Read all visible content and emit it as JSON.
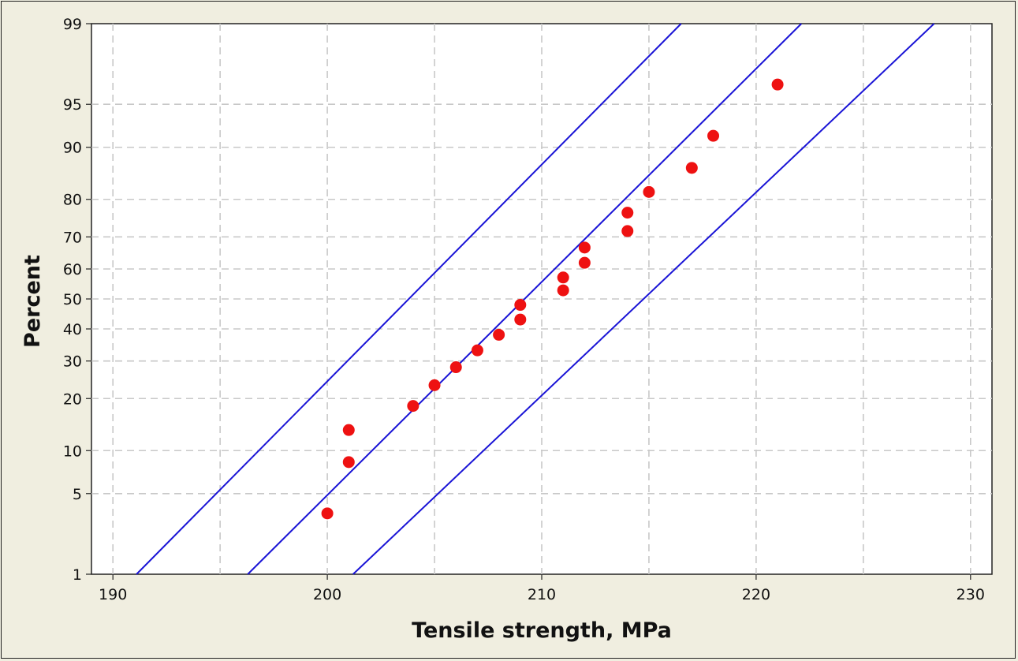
{
  "chart_data": {
    "type": "scatter",
    "title": "",
    "xlabel": "Tensile strength, MPa",
    "ylabel": "Percent",
    "xlim": [
      189,
      231
    ],
    "ylim_percent": [
      1,
      99
    ],
    "y_scale": "normal probability",
    "grid": true,
    "x_ticks": [
      190,
      200,
      210,
      220,
      230
    ],
    "x_tick_labels": [
      "190",
      "200",
      "210",
      "220",
      "230"
    ],
    "x_minor_gridlines": [
      195,
      205,
      215,
      225
    ],
    "y_ticks": [
      1,
      5,
      10,
      20,
      30,
      40,
      50,
      60,
      70,
      80,
      90,
      95,
      99
    ],
    "y_tick_labels": [
      "1",
      "5",
      "10",
      "20",
      "30",
      "40",
      "50",
      "60",
      "70",
      "80",
      "90",
      "95",
      "99"
    ],
    "points": [
      {
        "x": 200,
        "y": 3.5
      },
      {
        "x": 201,
        "y": 8.4
      },
      {
        "x": 201,
        "y": 13.4
      },
      {
        "x": 204,
        "y": 18.3
      },
      {
        "x": 205,
        "y": 23.3
      },
      {
        "x": 206,
        "y": 28.2
      },
      {
        "x": 207,
        "y": 33.2
      },
      {
        "x": 208,
        "y": 38.1
      },
      {
        "x": 209,
        "y": 43.1
      },
      {
        "x": 209,
        "y": 48.0
      },
      {
        "x": 211,
        "y": 52.9
      },
      {
        "x": 211,
        "y": 57.2
      },
      {
        "x": 212,
        "y": 62.0
      },
      {
        "x": 212,
        "y": 66.8
      },
      {
        "x": 214,
        "y": 71.7
      },
      {
        "x": 214,
        "y": 76.7
      },
      {
        "x": 215,
        "y": 81.7
      },
      {
        "x": 217,
        "y": 86.6
      },
      {
        "x": 218,
        "y": 91.6
      },
      {
        "x": 221,
        "y": 96.5
      }
    ],
    "fit_line": {
      "mean": 209.2,
      "stdev": 5.55
    },
    "confidence_band": {
      "lower_at_1pct": 191.1,
      "upper_at_1pct": 201.2,
      "lower_at_99pct": 216.5,
      "upper_at_99pct": 228.3
    },
    "colors": {
      "points": "#ee1111",
      "lines": "#1a14d6",
      "grid": "#c8c8c8",
      "plot_bg": "#ffffff",
      "frame_bg": "#f0eee0"
    }
  }
}
